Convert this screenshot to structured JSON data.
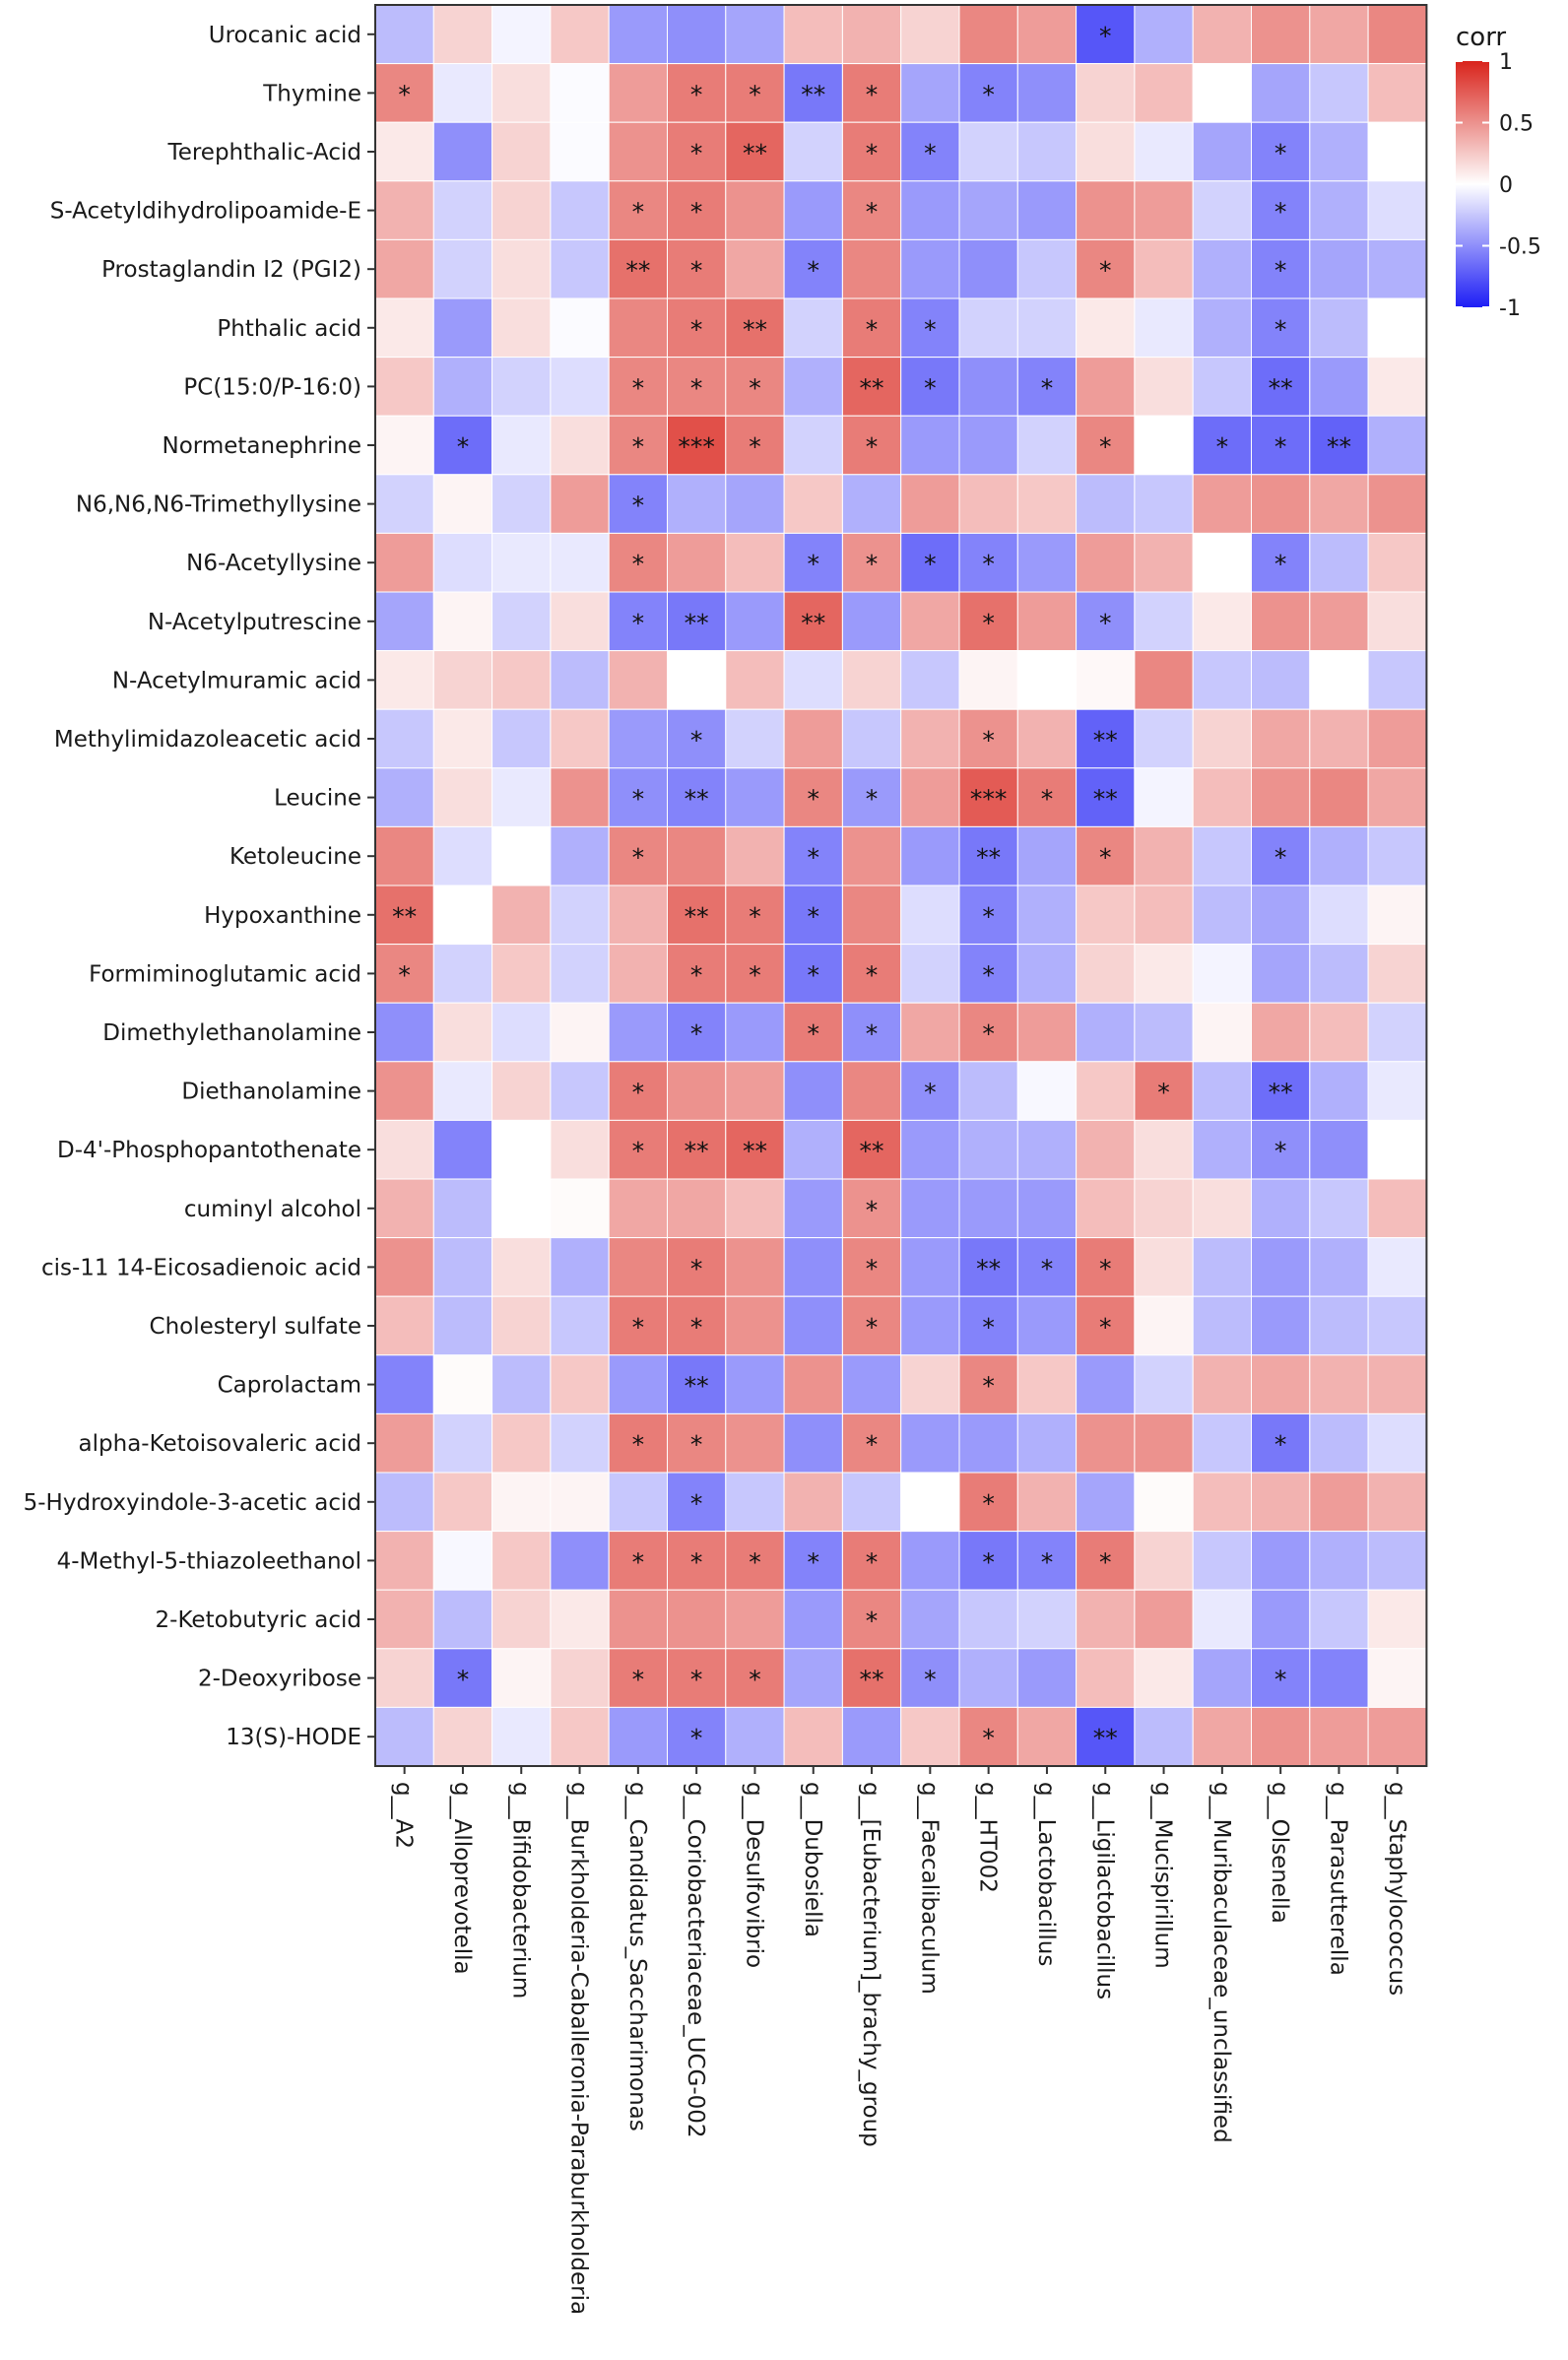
{
  "chart_data": {
    "type": "heatmap",
    "title": "",
    "legend": {
      "title": "corr",
      "min": -1,
      "max": 1,
      "ticks": [
        "1",
        "0.5",
        "0",
        "-0.5",
        "-1"
      ],
      "tick_values": [
        1,
        0.5,
        0,
        -0.5,
        -1
      ],
      "colors": {
        "low": "#1e1ef5",
        "mid": "#ffffff",
        "high": "#d9241c"
      },
      "placement": "top-right"
    },
    "rows": [
      "Urocanic acid",
      "Thymine",
      "Terephthalic-Acid",
      "S-Acetyldihydrolipoamide-E",
      "Prostaglandin I2 (PGI2)",
      "Phthalic acid",
      "PC(15:0/P-16:0)",
      "Normetanephrine",
      "N6,N6,N6-Trimethyllysine",
      "N6-Acetyllysine",
      "N-Acetylputrescine",
      "N-Acetylmuramic acid",
      "Methylimidazoleacetic acid",
      "Leucine",
      "Ketoleucine",
      "Hypoxanthine",
      "Formiminoglutamic acid",
      "Dimethylethanolamine",
      "Diethanolamine",
      "D-4'-Phosphopantothenate",
      "cuminyl alcohol",
      "cis-11 14-Eicosadienoic acid",
      "Cholesteryl sulfate",
      "Caprolactam",
      "alpha-Ketoisovaleric acid",
      "5-Hydroxyindole-3-acetic acid",
      "4-Methyl-5-thiazoleethanol",
      "2-Ketobutyric acid",
      "2-Deoxyribose",
      "13(S)-HODE"
    ],
    "columns": [
      "g__A2",
      "g__Alloprevotella",
      "g__Bifidobacterium",
      "g__Burkholderia-Caballeronia-Paraburkholderia",
      "g__Candidatus_Saccharimonas",
      "g__Coriobacteriaceae_UCG-002",
      "g__Desulfovibrio",
      "g__Dubosiella",
      "g__[Eubacterium]_brachy_group",
      "g__Faecalibaculum",
      "g__HT002",
      "g__Lactobacillus",
      "g__Ligilactobacillus",
      "g__Mucispirillum",
      "g__Muribaculaceae_unclassified",
      "g__Olsenella",
      "g__Parasutterella",
      "g__Staphylococcus"
    ],
    "values": [
      [
        -0.3,
        0.2,
        -0.05,
        0.25,
        -0.45,
        -0.5,
        -0.4,
        0.3,
        0.35,
        0.2,
        0.55,
        0.45,
        -0.75,
        -0.35,
        0.35,
        0.5,
        0.4,
        0.55
      ],
      [
        0.55,
        -0.1,
        0.15,
        -0.02,
        0.45,
        0.6,
        0.6,
        -0.6,
        0.6,
        -0.4,
        -0.55,
        -0.5,
        0.2,
        0.3,
        0.0,
        -0.4,
        -0.25,
        0.3
      ],
      [
        0.1,
        -0.5,
        0.2,
        -0.02,
        0.5,
        0.6,
        0.7,
        -0.2,
        0.6,
        -0.55,
        -0.2,
        -0.25,
        0.15,
        -0.1,
        -0.4,
        -0.55,
        -0.35,
        0.0
      ],
      [
        0.35,
        -0.2,
        0.2,
        -0.25,
        0.55,
        0.6,
        0.5,
        -0.45,
        0.55,
        -0.45,
        -0.4,
        -0.45,
        0.5,
        0.45,
        -0.2,
        -0.55,
        -0.35,
        -0.15
      ],
      [
        0.4,
        -0.2,
        0.15,
        -0.25,
        0.65,
        0.6,
        0.4,
        -0.55,
        0.55,
        -0.45,
        -0.5,
        -0.25,
        0.55,
        0.3,
        -0.35,
        -0.55,
        -0.4,
        -0.35
      ],
      [
        0.1,
        -0.45,
        0.15,
        -0.02,
        0.55,
        0.6,
        0.65,
        -0.2,
        0.6,
        -0.55,
        -0.2,
        -0.2,
        0.1,
        -0.1,
        -0.35,
        -0.55,
        -0.3,
        0.0
      ],
      [
        0.25,
        -0.35,
        -0.2,
        -0.15,
        0.55,
        0.55,
        0.55,
        -0.35,
        0.7,
        -0.6,
        -0.5,
        -0.55,
        0.45,
        0.15,
        -0.25,
        -0.65,
        -0.45,
        0.1
      ],
      [
        0.05,
        -0.65,
        -0.1,
        0.15,
        0.55,
        0.8,
        0.6,
        -0.2,
        0.6,
        -0.45,
        -0.45,
        -0.2,
        0.55,
        0.0,
        -0.65,
        -0.65,
        -0.7,
        -0.35
      ],
      [
        -0.2,
        0.05,
        -0.2,
        0.45,
        -0.55,
        -0.35,
        -0.4,
        0.25,
        -0.35,
        0.45,
        0.3,
        0.25,
        -0.3,
        -0.25,
        0.45,
        0.5,
        0.4,
        0.5
      ],
      [
        0.45,
        -0.15,
        -0.1,
        -0.1,
        0.55,
        0.45,
        0.3,
        -0.55,
        0.5,
        -0.65,
        -0.55,
        -0.45,
        0.45,
        0.35,
        0.0,
        -0.55,
        -0.3,
        0.25
      ],
      [
        -0.4,
        0.05,
        -0.2,
        0.15,
        -0.55,
        -0.6,
        -0.45,
        0.7,
        -0.45,
        0.4,
        0.65,
        0.45,
        -0.5,
        -0.2,
        0.1,
        0.5,
        0.45,
        0.15
      ],
      [
        0.1,
        0.2,
        0.25,
        -0.3,
        0.35,
        0.0,
        0.3,
        -0.15,
        0.2,
        -0.25,
        0.05,
        0.0,
        0.03,
        0.55,
        -0.25,
        -0.3,
        0.0,
        -0.25
      ],
      [
        -0.25,
        0.1,
        -0.25,
        0.25,
        -0.45,
        -0.5,
        -0.2,
        0.45,
        -0.25,
        0.35,
        0.5,
        0.35,
        -0.7,
        -0.2,
        0.2,
        0.4,
        0.35,
        0.45
      ],
      [
        -0.35,
        0.15,
        -0.1,
        0.5,
        -0.5,
        -0.55,
        -0.45,
        0.55,
        -0.45,
        0.45,
        0.75,
        0.6,
        -0.7,
        -0.05,
        0.3,
        0.5,
        0.55,
        0.4
      ],
      [
        0.55,
        -0.15,
        0.0,
        -0.35,
        0.55,
        0.55,
        0.35,
        -0.55,
        0.5,
        -0.45,
        -0.6,
        -0.4,
        0.55,
        0.35,
        -0.25,
        -0.55,
        -0.35,
        -0.25
      ],
      [
        0.65,
        0.0,
        0.35,
        -0.2,
        0.35,
        0.65,
        0.6,
        -0.6,
        0.55,
        -0.15,
        -0.55,
        -0.35,
        0.25,
        0.3,
        -0.3,
        -0.4,
        -0.15,
        0.05
      ],
      [
        0.55,
        -0.2,
        0.25,
        -0.2,
        0.35,
        0.6,
        0.6,
        -0.6,
        0.6,
        -0.2,
        -0.55,
        -0.35,
        0.2,
        0.1,
        -0.05,
        -0.4,
        -0.3,
        0.2
      ],
      [
        -0.5,
        0.15,
        -0.15,
        0.05,
        -0.45,
        -0.55,
        -0.45,
        0.6,
        -0.5,
        0.4,
        0.55,
        0.45,
        -0.35,
        -0.3,
        0.05,
        0.4,
        0.3,
        -0.2
      ],
      [
        0.5,
        -0.1,
        0.2,
        -0.25,
        0.6,
        0.5,
        0.45,
        -0.5,
        0.55,
        -0.5,
        -0.3,
        -0.03,
        0.25,
        0.6,
        -0.3,
        -0.65,
        -0.35,
        -0.1
      ],
      [
        0.15,
        -0.55,
        0.0,
        0.15,
        0.6,
        0.65,
        0.7,
        -0.35,
        0.7,
        -0.45,
        -0.35,
        -0.35,
        0.35,
        0.15,
        -0.35,
        -0.5,
        -0.5,
        0.0
      ],
      [
        0.35,
        -0.3,
        0.0,
        0.02,
        0.4,
        0.4,
        0.3,
        -0.45,
        0.5,
        -0.45,
        -0.45,
        -0.45,
        0.3,
        0.2,
        0.15,
        -0.35,
        -0.25,
        0.3
      ],
      [
        0.5,
        -0.3,
        0.15,
        -0.35,
        0.55,
        0.6,
        0.5,
        -0.5,
        0.55,
        -0.45,
        -0.6,
        -0.55,
        0.6,
        0.15,
        -0.3,
        -0.45,
        -0.35,
        -0.1
      ],
      [
        0.3,
        -0.3,
        0.2,
        -0.25,
        0.6,
        0.6,
        0.5,
        -0.5,
        0.55,
        -0.45,
        -0.55,
        -0.45,
        0.6,
        0.05,
        -0.3,
        -0.45,
        -0.3,
        -0.25
      ],
      [
        -0.55,
        0.02,
        -0.3,
        0.25,
        -0.45,
        -0.6,
        -0.45,
        0.5,
        -0.45,
        0.2,
        0.55,
        0.25,
        -0.45,
        -0.2,
        0.35,
        0.4,
        0.35,
        0.35
      ],
      [
        0.45,
        -0.2,
        0.25,
        -0.2,
        0.6,
        0.55,
        0.5,
        -0.5,
        0.55,
        -0.45,
        -0.45,
        -0.35,
        0.5,
        0.5,
        -0.25,
        -0.6,
        -0.3,
        -0.15
      ],
      [
        -0.3,
        0.25,
        0.05,
        0.05,
        -0.25,
        -0.55,
        -0.25,
        0.35,
        -0.25,
        0.0,
        0.6,
        0.35,
        -0.4,
        0.02,
        0.3,
        0.35,
        0.45,
        0.35
      ],
      [
        0.35,
        -0.03,
        0.25,
        -0.5,
        0.6,
        0.6,
        0.6,
        -0.55,
        0.6,
        -0.45,
        -0.6,
        -0.55,
        0.6,
        0.2,
        -0.25,
        -0.45,
        -0.35,
        -0.3
      ],
      [
        0.35,
        -0.3,
        0.2,
        0.1,
        0.5,
        0.5,
        0.45,
        -0.45,
        0.55,
        -0.4,
        -0.25,
        -0.2,
        0.35,
        0.45,
        -0.1,
        -0.45,
        -0.25,
        0.1
      ],
      [
        0.2,
        -0.6,
        0.05,
        0.2,
        0.6,
        0.6,
        0.6,
        -0.4,
        0.65,
        -0.5,
        -0.35,
        -0.45,
        0.3,
        0.1,
        -0.4,
        -0.55,
        -0.55,
        0.05
      ],
      [
        -0.3,
        0.2,
        -0.1,
        0.25,
        -0.45,
        -0.55,
        -0.35,
        0.3,
        -0.45,
        0.25,
        0.55,
        0.4,
        -0.75,
        -0.3,
        0.4,
        0.5,
        0.45,
        0.45
      ]
    ],
    "stars": [
      [
        "",
        "",
        "",
        "",
        "",
        "",
        "",
        "",
        "",
        "",
        "",
        "",
        "*",
        "",
        "",
        "",
        "",
        ""
      ],
      [
        "*",
        "",
        "",
        "",
        "",
        "*",
        "*",
        "**",
        "*",
        "",
        "*",
        "",
        "",
        "",
        "",
        "",
        "",
        ""
      ],
      [
        "",
        "",
        "",
        "",
        "",
        "*",
        "**",
        "",
        "*",
        "*",
        "",
        "",
        "",
        "",
        "",
        "*",
        "",
        ""
      ],
      [
        "",
        "",
        "",
        "",
        "*",
        "*",
        "",
        "",
        "*",
        "",
        "",
        "",
        "",
        "",
        "",
        "*",
        "",
        ""
      ],
      [
        "",
        "",
        "",
        "",
        "**",
        "*",
        "",
        "*",
        "",
        "",
        "",
        "",
        "*",
        "",
        "",
        "*",
        "",
        ""
      ],
      [
        "",
        "",
        "",
        "",
        "",
        "*",
        "**",
        "",
        "*",
        "*",
        "",
        "",
        "",
        "",
        "",
        "*",
        "",
        ""
      ],
      [
        "",
        "",
        "",
        "",
        "*",
        "*",
        "*",
        "",
        "**",
        "*",
        "",
        "*",
        "",
        "",
        "",
        "**",
        "",
        ""
      ],
      [
        "",
        "*",
        "",
        "",
        "*",
        "***",
        "*",
        "",
        "*",
        "",
        "",
        "",
        "*",
        "",
        "*",
        "*",
        "**",
        ""
      ],
      [
        "",
        "",
        "",
        "",
        "*",
        "",
        "",
        "",
        "",
        "",
        "",
        "",
        "",
        "",
        "",
        "",
        "",
        ""
      ],
      [
        "",
        "",
        "",
        "",
        "*",
        "",
        "",
        "*",
        "*",
        "*",
        "*",
        "",
        "",
        "",
        "",
        "*",
        "",
        ""
      ],
      [
        "",
        "",
        "",
        "",
        "*",
        "**",
        "",
        "**",
        "",
        "",
        "*",
        "",
        "*",
        "",
        "",
        "",
        "",
        ""
      ],
      [
        "",
        "",
        "",
        "",
        "",
        "",
        "",
        "",
        "",
        "",
        "",
        "",
        "",
        "",
        "",
        "",
        "",
        ""
      ],
      [
        "",
        "",
        "",
        "",
        "",
        "*",
        "",
        "",
        "",
        "",
        "*",
        "",
        "**",
        "",
        "",
        "",
        "",
        ""
      ],
      [
        "",
        "",
        "",
        "",
        "*",
        "**",
        "",
        "*",
        "*",
        "",
        "***",
        "*",
        "**",
        "",
        "",
        "",
        "",
        ""
      ],
      [
        "",
        "",
        "",
        "",
        "*",
        "",
        "",
        "*",
        "",
        "",
        "**",
        "",
        "*",
        "",
        "",
        "*",
        "",
        ""
      ],
      [
        "**",
        "",
        "",
        "",
        "",
        "**",
        "*",
        "*",
        "",
        "",
        "*",
        "",
        "",
        "",
        "",
        "",
        "",
        ""
      ],
      [
        "*",
        "",
        "",
        "",
        "",
        "*",
        "*",
        "*",
        "*",
        "",
        "*",
        "",
        "",
        "",
        "",
        "",
        "",
        ""
      ],
      [
        "",
        "",
        "",
        "",
        "",
        "*",
        "",
        "*",
        "*",
        "",
        "*",
        "",
        "",
        "",
        "",
        "",
        "",
        ""
      ],
      [
        "",
        "",
        "",
        "",
        "*",
        "",
        "",
        "",
        "",
        "*",
        "",
        "",
        "",
        "*",
        "",
        "**",
        "",
        ""
      ],
      [
        "",
        "",
        "",
        "",
        "*",
        "**",
        "**",
        "",
        "**",
        "",
        "",
        "",
        "",
        "",
        "",
        "*",
        "",
        ""
      ],
      [
        "",
        "",
        "",
        "",
        "",
        "",
        "",
        "",
        "*",
        "",
        "",
        "",
        "",
        "",
        "",
        "",
        "",
        ""
      ],
      [
        "",
        "",
        "",
        "",
        "",
        "*",
        "",
        "",
        "*",
        "",
        "**",
        "*",
        "*",
        "",
        "",
        "",
        "",
        ""
      ],
      [
        "",
        "",
        "",
        "",
        "*",
        "*",
        "",
        "",
        "*",
        "",
        "*",
        "",
        "*",
        "",
        "",
        "",
        "",
        ""
      ],
      [
        "",
        "",
        "",
        "",
        "",
        "**",
        "",
        "",
        "",
        "",
        "*",
        "",
        "",
        "",
        "",
        "",
        "",
        ""
      ],
      [
        "",
        "",
        "",
        "",
        "*",
        "*",
        "",
        "",
        "*",
        "",
        "",
        "",
        "",
        "",
        "",
        "*",
        "",
        ""
      ],
      [
        "",
        "",
        "",
        "",
        "",
        "*",
        "",
        "",
        "",
        "",
        "*",
        "",
        "",
        "",
        "",
        "",
        "",
        ""
      ],
      [
        "",
        "",
        "",
        "",
        "*",
        "*",
        "*",
        "*",
        "*",
        "",
        "*",
        "*",
        "*",
        "",
        "",
        "",
        "",
        ""
      ],
      [
        "",
        "",
        "",
        "",
        "",
        "",
        "",
        "",
        "*",
        "",
        "",
        "",
        "",
        "",
        "",
        "",
        "",
        ""
      ],
      [
        "",
        "*",
        "",
        "",
        "*",
        "*",
        "*",
        "",
        "**",
        "*",
        "",
        "",
        "",
        "",
        "",
        "*",
        "",
        ""
      ],
      [
        "",
        "",
        "",
        "",
        "",
        "*",
        "",
        "",
        "",
        "",
        "*",
        "",
        "**",
        "",
        "",
        "",
        "",
        ""
      ]
    ]
  }
}
